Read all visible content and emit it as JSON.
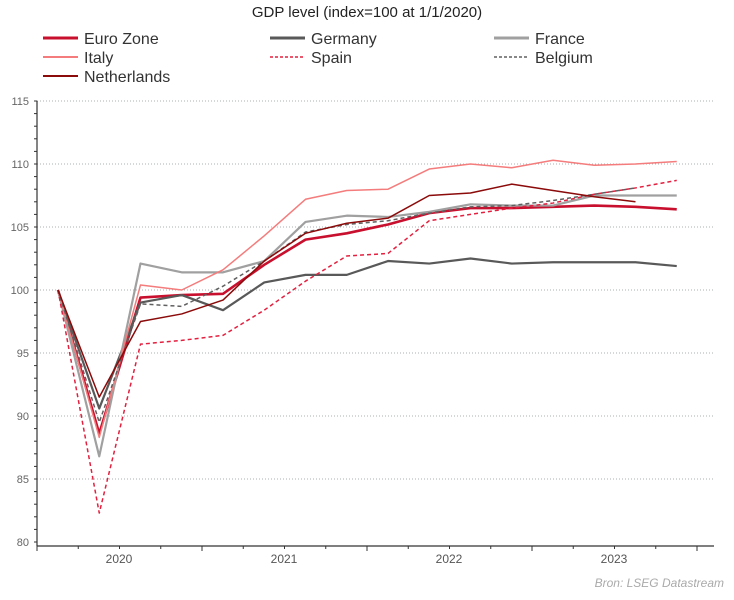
{
  "chart_data": {
    "type": "line",
    "title": "GDP level (index=100 at 1/1/2020)",
    "xlabel": "",
    "ylabel": "",
    "ylim": [
      80,
      115
    ],
    "yticks": [
      80,
      85,
      90,
      95,
      100,
      105,
      110,
      115
    ],
    "x": [
      "2020Q1",
      "2020Q2",
      "2020Q3",
      "2020Q4",
      "2021Q1",
      "2021Q2",
      "2021Q3",
      "2021Q4",
      "2022Q1",
      "2022Q2",
      "2022Q3",
      "2022Q4",
      "2023Q1",
      "2023Q2",
      "2023Q3",
      "2023Q4"
    ],
    "year_labels": [
      "2020",
      "2021",
      "2022",
      "2023"
    ],
    "grid": "horizontal dotted",
    "legend": "top",
    "source": "Bron: LSEG Datastream",
    "series": [
      {
        "name": "Euro Zone",
        "color": "#c8102e",
        "dash": false,
        "values": [
          100,
          88.6,
          99.4,
          99.6,
          99.7,
          102.0,
          104.0,
          104.5,
          105.2,
          106.1,
          106.5,
          106.5,
          106.6,
          106.7,
          106.6,
          106.4
        ]
      },
      {
        "name": "Germany",
        "color": "#595959",
        "dash": false,
        "values": [
          100,
          90.6,
          99.0,
          99.6,
          98.4,
          100.6,
          101.2,
          101.2,
          102.3,
          102.1,
          102.5,
          102.1,
          102.2,
          102.2,
          102.2,
          101.9
        ]
      },
      {
        "name": "France",
        "color": "#a0a0a0",
        "dash": false,
        "values": [
          100,
          86.8,
          102.1,
          101.4,
          101.4,
          102.3,
          105.4,
          105.9,
          105.8,
          106.2,
          106.8,
          106.7,
          106.7,
          107.5,
          107.5,
          107.5
        ]
      },
      {
        "name": "Italy",
        "color": "#f47c7c",
        "dash": false,
        "values": [
          100,
          88.3,
          100.4,
          100.0,
          101.6,
          104.3,
          107.2,
          107.9,
          108.0,
          109.6,
          110.0,
          109.7,
          110.3,
          109.9,
          110.0,
          110.2
        ]
      },
      {
        "name": "Spain",
        "color": "#e3203f",
        "dash": true,
        "values": [
          100,
          82.3,
          95.7,
          96.0,
          96.4,
          98.4,
          100.7,
          102.7,
          102.9,
          105.5,
          106.0,
          106.5,
          106.9,
          107.6,
          108.1,
          108.7
        ]
      },
      {
        "name": "Belgium",
        "color": "#606060",
        "dash": true,
        "values": [
          100,
          89.5,
          98.9,
          98.7,
          100.3,
          102.3,
          104.6,
          105.2,
          105.5,
          106.1,
          106.6,
          106.7,
          107.1,
          107.6,
          108.1,
          null
        ]
      },
      {
        "name": "Netherlands",
        "color": "#8b0a0a",
        "dash": false,
        "values": [
          100,
          91.5,
          97.5,
          98.1,
          99.2,
          102.3,
          104.5,
          105.3,
          105.7,
          107.5,
          107.7,
          108.4,
          107.9,
          107.4,
          107.0,
          null
        ]
      }
    ]
  }
}
